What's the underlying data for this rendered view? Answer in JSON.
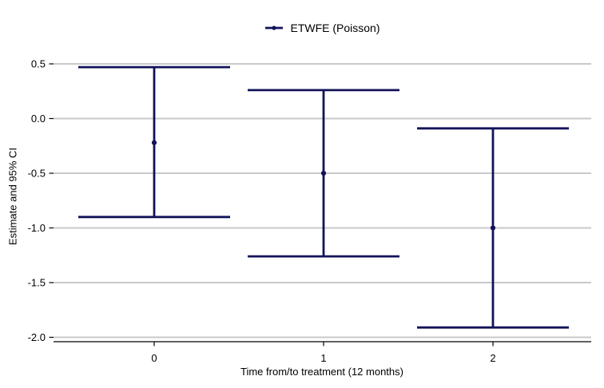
{
  "colors": {
    "series": "#12125A",
    "gridline": "#C9C9C9",
    "axis": "#000000",
    "text": "#000000",
    "background": "#FFFFFF"
  },
  "legend": {
    "label": "ETWFE (Poisson)"
  },
  "chart_data": {
    "type": "scatter",
    "style": "pointrange-errorbar",
    "title": "",
    "xlabel": "Time from/to treatment (12 months)",
    "ylabel": "Estimate and 95% CI",
    "categories": [
      "0",
      "1",
      "2"
    ],
    "series": [
      {
        "name": "ETWFE (Poisson)",
        "estimates": [
          -0.22,
          -0.5,
          -1.0
        ],
        "ci_low": [
          -0.9,
          -1.26,
          -1.91
        ],
        "ci_high": [
          0.47,
          0.26,
          -0.09
        ]
      }
    ],
    "yticks": [
      0.5,
      0.0,
      -0.5,
      -1.0,
      -1.5,
      -2.0
    ],
    "ylim": [
      -2.0,
      0.5
    ],
    "grid": "horizontal-only",
    "legend_position": "top-center"
  }
}
